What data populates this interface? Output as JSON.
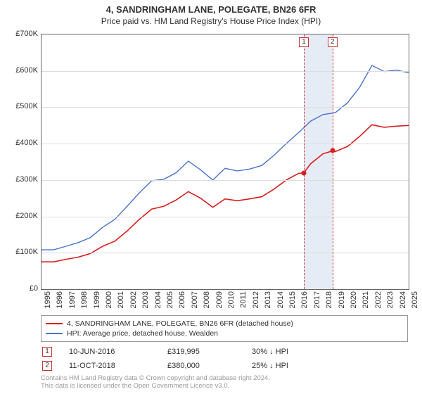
{
  "title": "4, SANDRINGHAM LANE, POLEGATE, BN26 6FR",
  "subtitle": "Price paid vs. HM Land Registry's House Price Index (HPI)",
  "chart": {
    "type": "line",
    "background_color": "#ffffff",
    "grid_color": "#dddddd",
    "border_color": "#666666",
    "x_axis": {
      "min": 1995,
      "max": 2025,
      "ticks": [
        1995,
        1996,
        1997,
        1998,
        1999,
        2000,
        2001,
        2002,
        2003,
        2004,
        2005,
        2006,
        2007,
        2008,
        2009,
        2010,
        2011,
        2012,
        2013,
        2014,
        2015,
        2016,
        2017,
        2018,
        2019,
        2020,
        2021,
        2022,
        2023,
        2024,
        2025
      ],
      "label_fontsize": 11,
      "rotation": -90
    },
    "y_axis": {
      "min": 0,
      "max": 700000,
      "tick_step": 100000,
      "tick_labels": [
        "£0",
        "£100K",
        "£200K",
        "£300K",
        "£400K",
        "£500K",
        "£600K",
        "£700K"
      ],
      "label_fontsize": 11
    },
    "highlight_band": {
      "x_start": 2016.44,
      "x_end": 2018.78,
      "color": "#e6ecf5"
    },
    "vlines": [
      {
        "x": 2016.44,
        "color": "#cc3333",
        "style": "dashed",
        "marker": "1"
      },
      {
        "x": 2018.78,
        "color": "#cc3333",
        "style": "dashed",
        "marker": "2"
      }
    ],
    "series": [
      {
        "name": "price_paid",
        "label": "4, SANDRINGHAM LANE, POLEGATE, BN26 6FR (detached house)",
        "color": "#d81e1e",
        "line_width": 1.6,
        "points": [
          [
            1995,
            75000
          ],
          [
            1996,
            75000
          ],
          [
            1997,
            82000
          ],
          [
            1998,
            88000
          ],
          [
            1999,
            98000
          ],
          [
            2000,
            118000
          ],
          [
            2001,
            132000
          ],
          [
            2002,
            160000
          ],
          [
            2003,
            192000
          ],
          [
            2004,
            220000
          ],
          [
            2005,
            228000
          ],
          [
            2006,
            245000
          ],
          [
            2007,
            268000
          ],
          [
            2008,
            250000
          ],
          [
            2009,
            225000
          ],
          [
            2010,
            248000
          ],
          [
            2011,
            243000
          ],
          [
            2012,
            248000
          ],
          [
            2013,
            254000
          ],
          [
            2014,
            275000
          ],
          [
            2015,
            300000
          ],
          [
            2016,
            318000
          ],
          [
            2016.44,
            319995
          ],
          [
            2017,
            345000
          ],
          [
            2018,
            372000
          ],
          [
            2018.78,
            380000
          ],
          [
            2019,
            378000
          ],
          [
            2020,
            392000
          ],
          [
            2021,
            420000
          ],
          [
            2022,
            452000
          ],
          [
            2023,
            445000
          ],
          [
            2024,
            448000
          ],
          [
            2025,
            450000
          ]
        ],
        "markers": [
          {
            "x": 2016.44,
            "y": 319995
          },
          {
            "x": 2018.78,
            "y": 380000
          }
        ]
      },
      {
        "name": "hpi",
        "label": "HPI: Average price, detached house, Wealden",
        "color": "#4a74c9",
        "line_width": 1.4,
        "points": [
          [
            1995,
            108000
          ],
          [
            1996,
            108000
          ],
          [
            1997,
            118000
          ],
          [
            1998,
            128000
          ],
          [
            1999,
            142000
          ],
          [
            2000,
            170000
          ],
          [
            2001,
            192000
          ],
          [
            2002,
            228000
          ],
          [
            2003,
            265000
          ],
          [
            2004,
            298000
          ],
          [
            2005,
            302000
          ],
          [
            2006,
            320000
          ],
          [
            2007,
            352000
          ],
          [
            2008,
            328000
          ],
          [
            2009,
            300000
          ],
          [
            2010,
            332000
          ],
          [
            2011,
            325000
          ],
          [
            2012,
            330000
          ],
          [
            2013,
            340000
          ],
          [
            2014,
            368000
          ],
          [
            2015,
            400000
          ],
          [
            2016,
            430000
          ],
          [
            2017,
            462000
          ],
          [
            2018,
            480000
          ],
          [
            2019,
            485000
          ],
          [
            2020,
            512000
          ],
          [
            2021,
            555000
          ],
          [
            2022,
            615000
          ],
          [
            2023,
            598000
          ],
          [
            2024,
            602000
          ],
          [
            2025,
            595000
          ]
        ]
      }
    ]
  },
  "legend": {
    "border_color": "#999999",
    "items": [
      {
        "color": "#d81e1e",
        "label": "4, SANDRINGHAM LANE, POLEGATE, BN26 6FR (detached house)"
      },
      {
        "color": "#4a74c9",
        "label": "HPI: Average price, detached house, Wealden"
      }
    ]
  },
  "transactions": [
    {
      "marker": "1",
      "date": "10-JUN-2016",
      "price": "£319,995",
      "delta": "30% ↓ HPI"
    },
    {
      "marker": "2",
      "date": "11-OCT-2018",
      "price": "£380,000",
      "delta": "25% ↓ HPI"
    }
  ],
  "footnote_line1": "Contains HM Land Registry data © Crown copyright and database right 2024.",
  "footnote_line2": "This data is licensed under the Open Government Licence v3.0."
}
